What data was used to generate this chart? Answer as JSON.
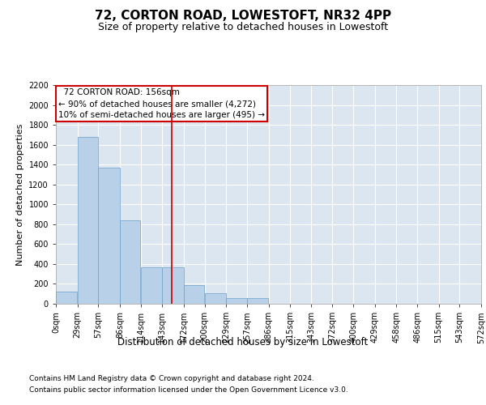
{
  "title": "72, CORTON ROAD, LOWESTOFT, NR32 4PP",
  "subtitle": "Size of property relative to detached houses in Lowestoft",
  "xlabel": "Distribution of detached houses by size in Lowestoft",
  "ylabel": "Number of detached properties",
  "footnote1": "Contains HM Land Registry data © Crown copyright and database right 2024.",
  "footnote2": "Contains public sector information licensed under the Open Government Licence v3.0.",
  "property_label": "72 CORTON ROAD: 156sqm",
  "annotation_line1": "← 90% of detached houses are smaller (4,272)",
  "annotation_line2": "10% of semi-detached houses are larger (495) →",
  "property_sqm": 156,
  "bin_edges": [
    0,
    29,
    57,
    86,
    114,
    143,
    172,
    200,
    229,
    257,
    286,
    315,
    343,
    372,
    400,
    429,
    458,
    486,
    515,
    543,
    572
  ],
  "bar_heights": [
    120,
    1680,
    1370,
    840,
    370,
    370,
    185,
    105,
    60,
    60,
    0,
    0,
    0,
    0,
    0,
    0,
    0,
    0,
    0,
    0
  ],
  "bar_color": "#b8d0e8",
  "bar_edge_color": "#6aa0cc",
  "vline_color": "#cc0000",
  "vline_x": 156,
  "annotation_box_color": "#cc0000",
  "ylim": [
    0,
    2200
  ],
  "yticks": [
    0,
    200,
    400,
    600,
    800,
    1000,
    1200,
    1400,
    1600,
    1800,
    2000,
    2200
  ],
  "background_color": "#dce6f0",
  "fig_background": "#ffffff",
  "grid_color": "#ffffff",
  "title_fontsize": 11,
  "subtitle_fontsize": 9,
  "ylabel_fontsize": 8,
  "xlabel_fontsize": 8.5,
  "tick_fontsize": 7,
  "annotation_fontsize": 7.5,
  "footnote_fontsize": 6.5
}
